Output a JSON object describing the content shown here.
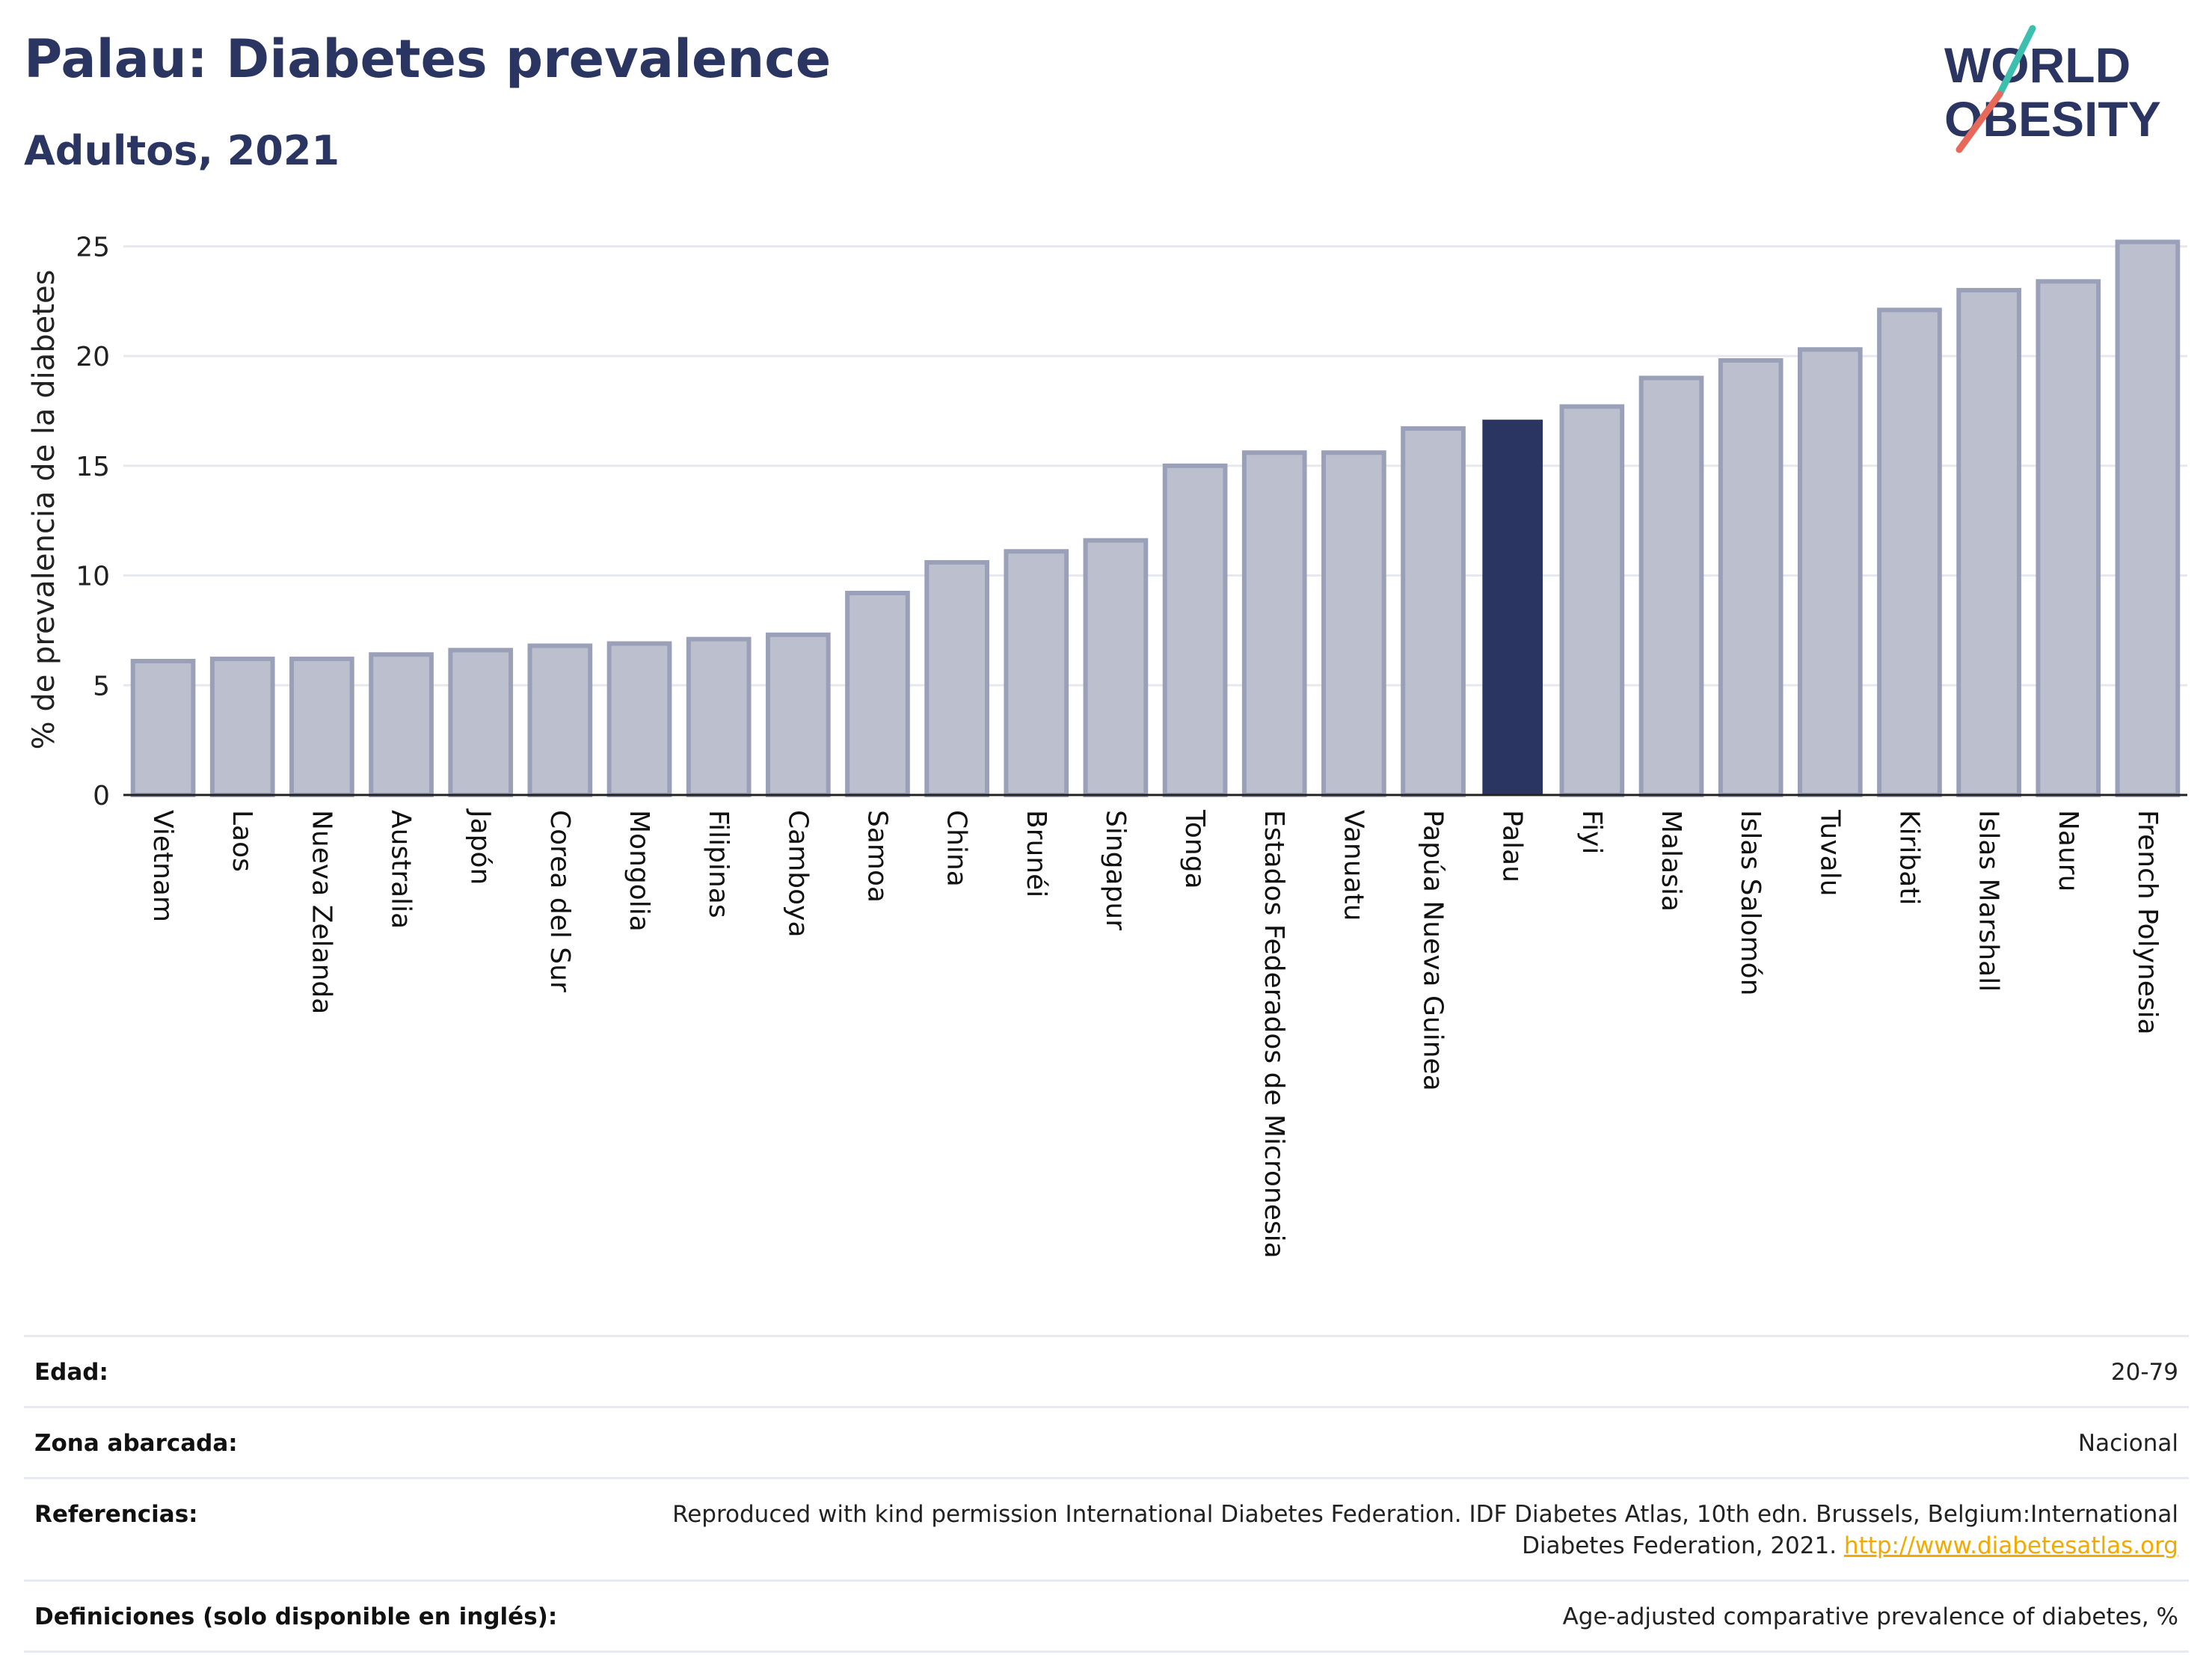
{
  "header": {
    "title": "Palau: Diabetes prevalence",
    "subtitle": "Adultos, 2021"
  },
  "logo": {
    "line1": "WORLD",
    "line2": "OBESITY",
    "slash_color_top": "#3cbfae",
    "slash_color_bottom": "#e8685a",
    "text_color": "#2b3561"
  },
  "colors": {
    "highlight_bar": "#2b3561",
    "other_bar_fill": "#bcc0ce",
    "other_bar_stroke": "#9aa0b8",
    "grid": "#e6e8ee",
    "baseline": "#222222"
  },
  "chart_data": {
    "type": "bar",
    "title": "Palau: Diabetes prevalence",
    "subtitle": "Adultos, 2021",
    "xlabel": "",
    "ylabel": "% de prevalencia de la diabetes",
    "ylim": [
      0,
      26
    ],
    "yticks": [
      0,
      5,
      10,
      15,
      20,
      25
    ],
    "grid": true,
    "highlight": "Palau",
    "categories": [
      "Vietnam",
      "Laos",
      "Nueva Zelanda",
      "Australia",
      "Japón",
      "Corea del Sur",
      "Mongolia",
      "Filipinas",
      "Camboya",
      "Samoa",
      "China",
      "Brunéi",
      "Singapur",
      "Tonga",
      "Estados Federados de Micronesia",
      "Vanuatu",
      "Papúa Nueva Guinea",
      "Palau",
      "Fiyi",
      "Malasia",
      "Islas Salomón",
      "Tuvalu",
      "Kiribati",
      "Islas Marshall",
      "Nauru",
      "French Polynesia"
    ],
    "values": [
      6.1,
      6.2,
      6.2,
      6.4,
      6.6,
      6.8,
      6.9,
      7.1,
      7.3,
      9.2,
      10.6,
      11.1,
      11.6,
      15.0,
      15.6,
      15.6,
      16.7,
      17.1,
      17.7,
      19.0,
      19.8,
      20.3,
      22.1,
      23.0,
      23.4,
      25.2
    ]
  },
  "metadata": {
    "rows": [
      {
        "key": "Edad:",
        "value": "20-79"
      },
      {
        "key": "Zona abarcada:",
        "value": "Nacional"
      },
      {
        "key": "Referencias:",
        "value": "Reproduced with kind permission International Diabetes Federation.  IDF Diabetes Atlas, 10th edn. Brussels, Belgium:International Diabetes Federation, 2021.",
        "link": "http://www.diabetesatlas.org"
      },
      {
        "key": "Definiciones (solo disponible en inglés):",
        "value": "Age-adjusted comparative prevalence of diabetes, %"
      }
    ]
  }
}
